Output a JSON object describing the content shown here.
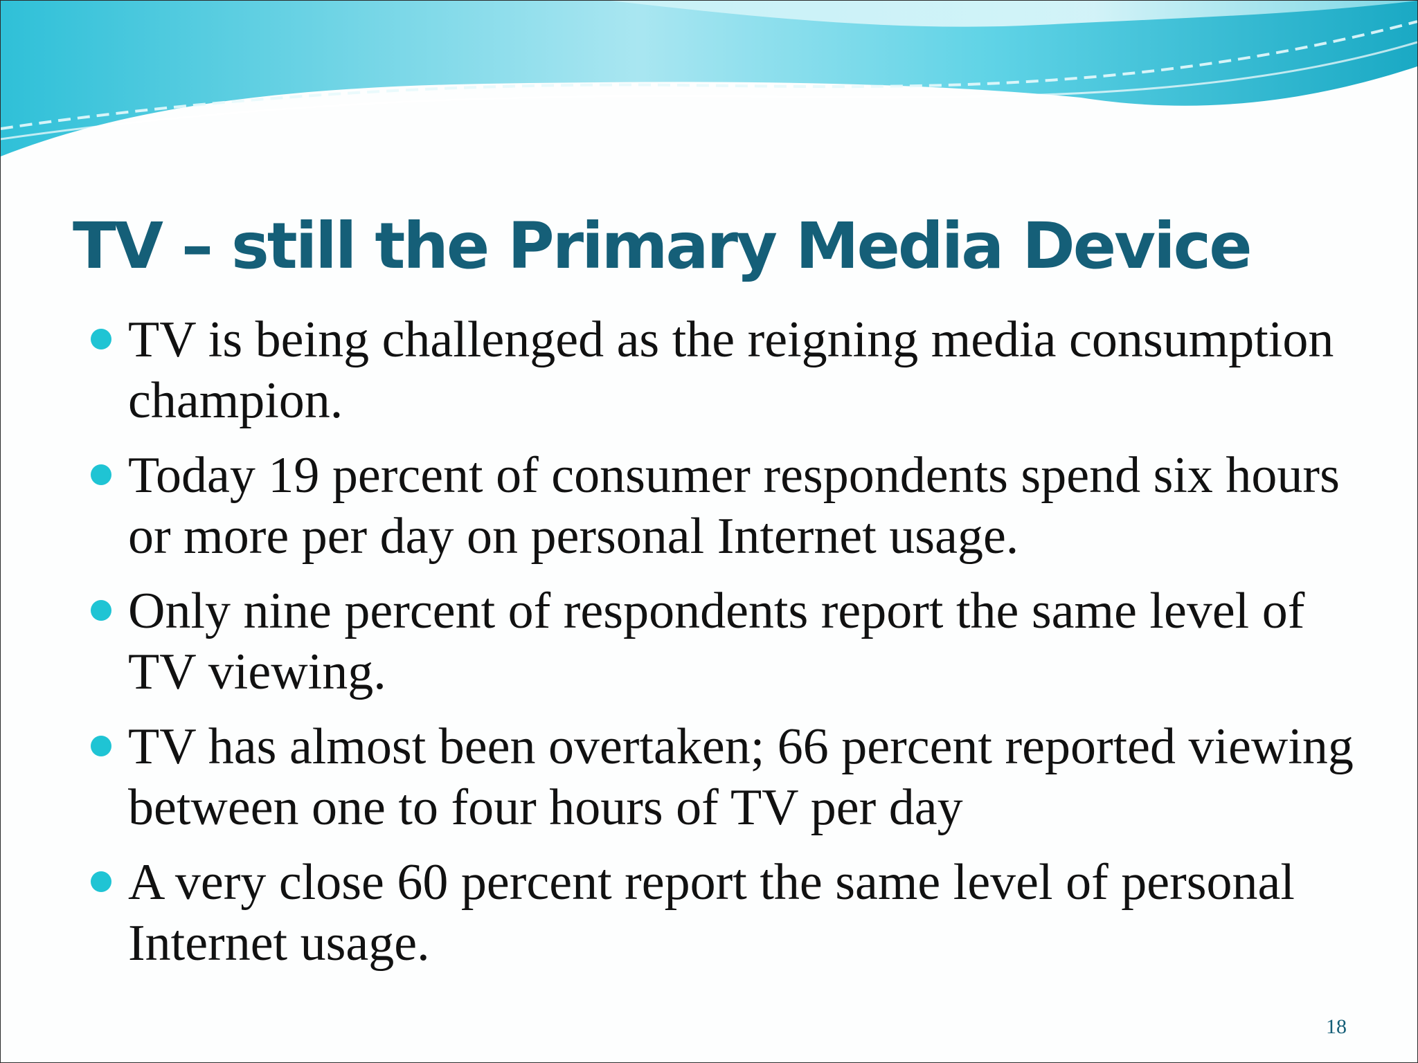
{
  "slide": {
    "title": "TV – still the Primary Media Device",
    "bullets": [
      "TV is being challenged as the reigning media consumption champion.",
      "Today 19 percent of consumer respondents spend six hours or more per day on personal Internet usage.",
      "Only nine percent of respondents report the same level of TV viewing.",
      "TV has almost been overtaken; 66 percent reported viewing between one to four hours of TV per day",
      "A very close 60 percent report the same level of personal Internet usage."
    ],
    "page_number": "18"
  },
  "colors": {
    "title": "#155f78",
    "bullet": "#1fc4d4",
    "wave_light": "#b8ecf4",
    "wave_mid": "#5fd3e6",
    "wave_dark": "#1aa9c4"
  },
  "icons": {
    "bullet": "filled-circle-bullet-icon",
    "header": "wave-decoration"
  }
}
